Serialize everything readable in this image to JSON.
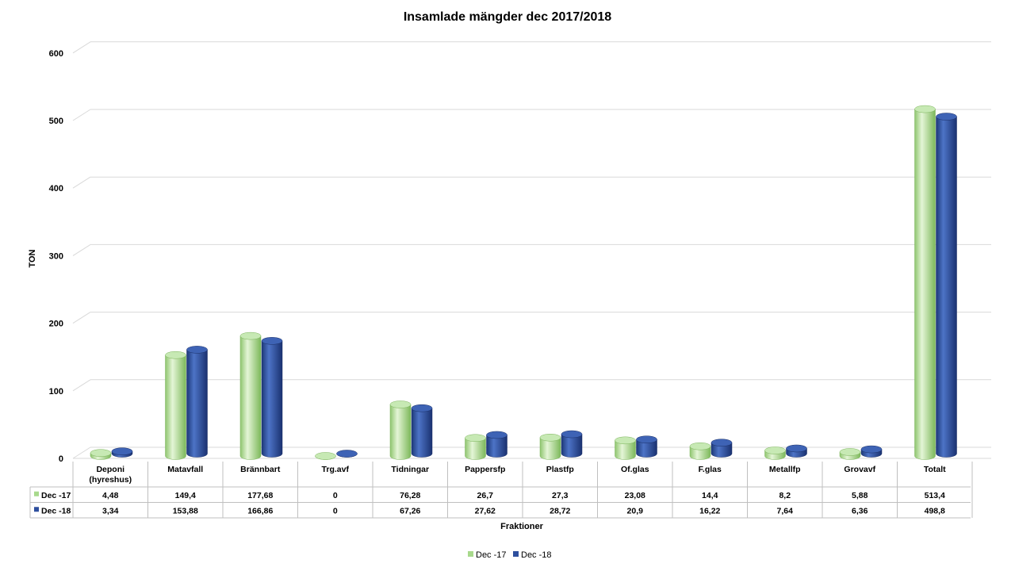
{
  "chart_data": {
    "type": "bar",
    "title": "Insamlade mängder dec 2017/2018",
    "ylabel": "TON",
    "xlabel": "Fraktioner",
    "ylim": [
      0,
      600
    ],
    "yticks": [
      0,
      100,
      200,
      300,
      400,
      500,
      600
    ],
    "grid": true,
    "legend": "bottom",
    "categories": [
      [
        "Deponi",
        "(hyreshus)"
      ],
      [
        "Matavfall"
      ],
      [
        "Brännbart"
      ],
      [
        "Trg.avf"
      ],
      [
        "Tidningar"
      ],
      [
        "Pappersfp"
      ],
      [
        "Plastfp"
      ],
      [
        "Of.glas"
      ],
      [
        "F.glas"
      ],
      [
        "Metallfp"
      ],
      [
        "Grovavf"
      ],
      [
        "Totalt"
      ]
    ],
    "series": [
      {
        "name": "Dec -17",
        "color": "#a8d98c",
        "values": [
          4.48,
          149.4,
          177.68,
          0,
          76.28,
          26.7,
          27.3,
          23.08,
          14.4,
          8.2,
          5.88,
          513.4
        ],
        "labels": [
          "4,48",
          "149,4",
          "177,68",
          "0",
          "76,28",
          "26,7",
          "27,3",
          "23,08",
          "14,4",
          "8,2",
          "5,88",
          "513,4"
        ]
      },
      {
        "name": "Dec -18",
        "color": "#2e4f9e",
        "values": [
          3.34,
          153.88,
          166.86,
          0,
          67.26,
          27.62,
          28.72,
          20.9,
          16.22,
          7.64,
          6.36,
          498.8
        ],
        "labels": [
          "3,34",
          "153,88",
          "166,86",
          "0",
          "67,26",
          "27,62",
          "28,72",
          "20,9",
          "16,22",
          "7,64",
          "6,36",
          "498,8"
        ]
      }
    ]
  }
}
